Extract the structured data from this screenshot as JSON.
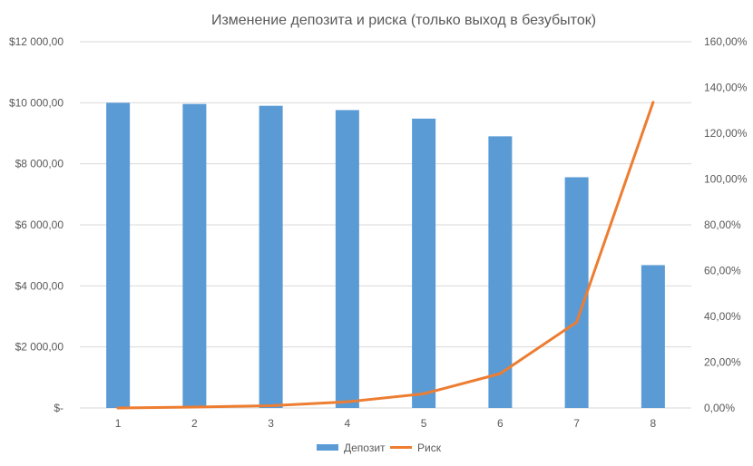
{
  "chart_data": {
    "type": "bar",
    "title": "Изменение депозита и риска (только выход в безубыток)",
    "categories": [
      "1",
      "2",
      "3",
      "4",
      "5",
      "6",
      "7",
      "8"
    ],
    "series": [
      {
        "name": "Депозит",
        "type": "bar",
        "axis": "left",
        "color": "#5B9BD5",
        "values": [
          10000,
          9960,
          9900,
          9760,
          9480,
          8900,
          7560,
          4680
        ]
      },
      {
        "name": "Риск",
        "type": "line",
        "axis": "right",
        "color": "#ED7D31",
        "values": [
          0.0,
          0.4,
          1.0,
          2.7,
          6.2,
          15.0,
          37.5,
          133.5
        ]
      }
    ],
    "y_left": {
      "min": 0,
      "max": 12000,
      "ticks": [
        0,
        2000,
        4000,
        6000,
        8000,
        10000,
        12000
      ],
      "tick_labels": [
        "$-",
        "$2 000,00",
        "$4 000,00",
        "$6 000,00",
        "$8 000,00",
        "$10 000,00",
        "$12 000,00"
      ]
    },
    "y_right": {
      "min": 0,
      "max": 160,
      "ticks": [
        0,
        20,
        40,
        60,
        80,
        100,
        120,
        140,
        160
      ],
      "tick_labels": [
        "0,00%",
        "20,00%",
        "40,00%",
        "60,00%",
        "80,00%",
        "100,00%",
        "120,00%",
        "140,00%",
        "160,00%"
      ]
    },
    "grid": true,
    "legend": "bottom"
  }
}
